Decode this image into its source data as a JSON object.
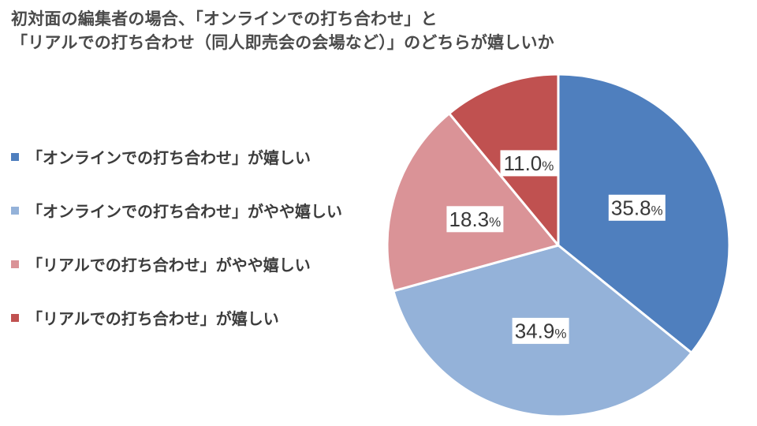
{
  "title": {
    "line1": "初対面の編集者の場合、「オンラインでの打ち合わせ」と",
    "line2": "「リアルでの打ち合わせ（同人即売会の会場など）」のどちらが嬉しいか"
  },
  "legend": {
    "items": [
      {
        "label": "「オンラインでの打ち合わせ」が嬉しい",
        "color": "#4f7fbe"
      },
      {
        "label": "「オンラインでの打ち合わせ」がやや嬉しい",
        "color": "#94b2d9"
      },
      {
        "label": "「リアルでの打ち合わせ」がやや嬉しい",
        "color": "#da9397"
      },
      {
        "label": "「リアルでの打ち合わせ」が嬉しい",
        "color": "#c05150"
      }
    ]
  },
  "chart_data": {
    "type": "pie",
    "title": "初対面の編集者の場合、「オンラインでの打ち合わせ」と「リアルでの打ち合わせ（同人即売会の会場など）」のどちらが嬉しいか",
    "labels": [
      "「オンラインでの打ち合わせ」が嬉しい",
      "「オンラインでの打ち合わせ」がやや嬉しい",
      "「リアルでの打ち合わせ」がやや嬉しい",
      "「リアルでの打ち合わせ」が嬉しい"
    ],
    "values": [
      35.8,
      34.9,
      18.3,
      11.0
    ],
    "data_labels": [
      "35.8%",
      "34.9%",
      "18.3%",
      "11.0%"
    ],
    "unit": "%",
    "colors": [
      "#4f7fbe",
      "#94b2d9",
      "#da9397",
      "#c05150"
    ],
    "start_angle_deg": 0,
    "direction": "clockwise",
    "legend_position": "left",
    "slice_border_color": "#ffffff",
    "label_box_color": "#ffffff",
    "label_text_color": "#383838"
  }
}
